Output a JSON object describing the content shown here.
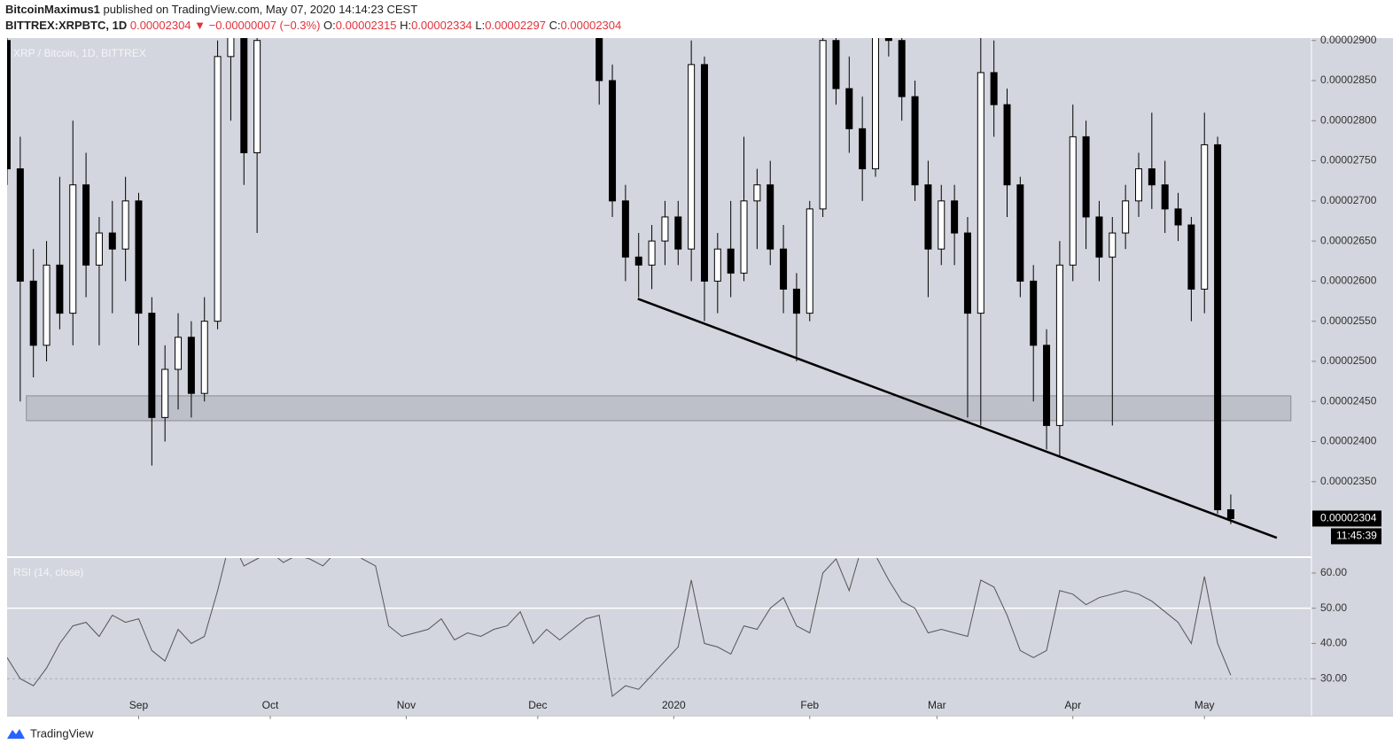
{
  "header": {
    "author": "BitcoinMaximus1",
    "published": "published on TradingView.com, May 07, 2020 14:14:23 CEST",
    "symbol": "BITTREX:XRPBTC, 1D",
    "last": "0.00002304",
    "change": "▼ −0.00000007 (−0.3%)",
    "ohlc": [
      {
        "key": "O:",
        "value": "0.00002315"
      },
      {
        "key": "H:",
        "value": "0.00002334"
      },
      {
        "key": "L:",
        "value": "0.00002297"
      },
      {
        "key": "C:",
        "value": "0.00002304"
      }
    ]
  },
  "footer": {
    "brand": "TradingView"
  },
  "chart_data": [
    {
      "type": "candlestick",
      "title": "XRP / Bitcoin, 1D, BITTREX",
      "up_color": "#ffffff",
      "down_color": "#000000",
      "x": [
        0,
        3,
        6,
        9,
        12,
        15,
        18,
        21,
        24,
        27,
        30,
        33,
        36,
        39,
        42,
        45,
        48,
        51,
        54,
        57,
        135,
        138,
        141,
        144,
        147,
        150,
        153,
        156,
        159,
        162,
        165,
        168,
        171,
        174,
        177,
        180,
        183,
        186,
        189,
        192,
        195,
        198,
        201,
        204,
        207,
        210,
        213,
        216,
        219,
        222,
        225,
        228,
        231,
        234,
        237,
        240,
        243,
        246,
        249,
        252,
        255,
        258,
        261,
        264,
        267,
        270,
        273,
        276,
        279
      ],
      "open": [
        2.9e-05,
        2.74e-05,
        2.6e-05,
        2.52e-05,
        2.62e-05,
        2.56e-05,
        2.72e-05,
        2.62e-05,
        2.66e-05,
        2.64e-05,
        2.7e-05,
        2.56e-05,
        2.43e-05,
        2.49e-05,
        2.53e-05,
        2.46e-05,
        2.55e-05,
        2.88e-05,
        2.95e-05,
        2.76e-05,
        2.95e-05,
        2.85e-05,
        2.7e-05,
        2.63e-05,
        2.62e-05,
        2.65e-05,
        2.68e-05,
        2.64e-05,
        2.87e-05,
        2.6e-05,
        2.64e-05,
        2.61e-05,
        2.7e-05,
        2.72e-05,
        2.64e-05,
        2.59e-05,
        2.56e-05,
        2.69e-05,
        2.9e-05,
        2.84e-05,
        2.79e-05,
        2.74e-05,
        2.93e-05,
        2.9e-05,
        2.83e-05,
        2.72e-05,
        2.64e-05,
        2.7e-05,
        2.66e-05,
        2.56e-05,
        2.86e-05,
        2.82e-05,
        2.72e-05,
        2.6e-05,
        2.52e-05,
        2.42e-05,
        2.62e-05,
        2.78e-05,
        2.68e-05,
        2.63e-05,
        2.66e-05,
        2.7e-05,
        2.74e-05,
        2.72e-05,
        2.69e-05,
        2.67e-05,
        2.59e-05,
        2.77e-05,
        2.315e-05
      ],
      "high": [
        2.95e-05,
        2.78e-05,
        2.64e-05,
        2.65e-05,
        2.73e-05,
        2.8e-05,
        2.76e-05,
        2.68e-05,
        2.7e-05,
        2.73e-05,
        2.71e-05,
        2.58e-05,
        2.52e-05,
        2.56e-05,
        2.55e-05,
        2.58e-05,
        2.9e-05,
        3e-05,
        3e-05,
        2.95e-05,
        3e-05,
        2.87e-05,
        2.72e-05,
        2.66e-05,
        2.67e-05,
        2.7e-05,
        2.7e-05,
        2.9e-05,
        2.88e-05,
        2.66e-05,
        2.7e-05,
        2.78e-05,
        2.74e-05,
        2.75e-05,
        2.67e-05,
        2.61e-05,
        2.7e-05,
        2.92e-05,
        2.95e-05,
        2.88e-05,
        2.83e-05,
        2.96e-05,
        2.99e-05,
        2.92e-05,
        2.85e-05,
        2.75e-05,
        2.72e-05,
        2.72e-05,
        2.68e-05,
        2.92e-05,
        2.9e-05,
        2.84e-05,
        2.73e-05,
        2.62e-05,
        2.54e-05,
        2.65e-05,
        2.82e-05,
        2.8e-05,
        2.7e-05,
        2.68e-05,
        2.72e-05,
        2.76e-05,
        2.81e-05,
        2.75e-05,
        2.71e-05,
        2.68e-05,
        2.81e-05,
        2.78e-05,
        2.334e-05
      ],
      "low": [
        2.72e-05,
        2.45e-05,
        2.48e-05,
        2.5e-05,
        2.54e-05,
        2.52e-05,
        2.58e-05,
        2.52e-05,
        2.56e-05,
        2.6e-05,
        2.52e-05,
        2.37e-05,
        2.4e-05,
        2.44e-05,
        2.43e-05,
        2.45e-05,
        2.54e-05,
        2.8e-05,
        2.72e-05,
        2.66e-05,
        2.82e-05,
        2.68e-05,
        2.6e-05,
        2.58e-05,
        2.59e-05,
        2.62e-05,
        2.62e-05,
        2.6e-05,
        2.55e-05,
        2.56e-05,
        2.58e-05,
        2.6e-05,
        2.64e-05,
        2.62e-05,
        2.56e-05,
        2.5e-05,
        2.55e-05,
        2.68e-05,
        2.82e-05,
        2.76e-05,
        2.7e-05,
        2.73e-05,
        2.88e-05,
        2.8e-05,
        2.7e-05,
        2.58e-05,
        2.62e-05,
        2.62e-05,
        2.43e-05,
        2.42e-05,
        2.78e-05,
        2.68e-05,
        2.58e-05,
        2.45e-05,
        2.39e-05,
        2.38e-05,
        2.6e-05,
        2.64e-05,
        2.6e-05,
        2.42e-05,
        2.64e-05,
        2.68e-05,
        2.69e-05,
        2.66e-05,
        2.65e-05,
        2.55e-05,
        2.56e-05,
        2.31e-05,
        2.297e-05
      ],
      "close": [
        2.74e-05,
        2.6e-05,
        2.52e-05,
        2.62e-05,
        2.56e-05,
        2.72e-05,
        2.62e-05,
        2.66e-05,
        2.64e-05,
        2.7e-05,
        2.56e-05,
        2.43e-05,
        2.49e-05,
        2.53e-05,
        2.46e-05,
        2.55e-05,
        2.88e-05,
        2.95e-05,
        2.76e-05,
        2.9e-05,
        2.85e-05,
        2.7e-05,
        2.63e-05,
        2.62e-05,
        2.65e-05,
        2.68e-05,
        2.64e-05,
        2.87e-05,
        2.6e-05,
        2.64e-05,
        2.61e-05,
        2.7e-05,
        2.72e-05,
        2.64e-05,
        2.59e-05,
        2.56e-05,
        2.69e-05,
        2.9e-05,
        2.84e-05,
        2.79e-05,
        2.74e-05,
        2.93e-05,
        2.9e-05,
        2.83e-05,
        2.72e-05,
        2.64e-05,
        2.7e-05,
        2.66e-05,
        2.56e-05,
        2.86e-05,
        2.82e-05,
        2.72e-05,
        2.6e-05,
        2.52e-05,
        2.42e-05,
        2.62e-05,
        2.78e-05,
        2.68e-05,
        2.63e-05,
        2.66e-05,
        2.7e-05,
        2.74e-05,
        2.72e-05,
        2.69e-05,
        2.67e-05,
        2.59e-05,
        2.77e-05,
        2.315e-05,
        2.304e-05
      ],
      "xlim": [
        0,
        297.4
      ],
      "ylim": [
        2.257e-05,
        2.903e-05
      ],
      "yticks": [
        {
          "value": 2.35e-05,
          "label": "0.00002350"
        },
        {
          "value": 2.4e-05,
          "label": "0.00002400"
        },
        {
          "value": 2.45e-05,
          "label": "0.00002450"
        },
        {
          "value": 2.5e-05,
          "label": "0.00002500"
        },
        {
          "value": 2.55e-05,
          "label": "0.00002550"
        },
        {
          "value": 2.6e-05,
          "label": "0.00002600"
        },
        {
          "value": 2.65e-05,
          "label": "0.00002650"
        },
        {
          "value": 2.7e-05,
          "label": "0.00002700"
        },
        {
          "value": 2.75e-05,
          "label": "0.00002750"
        },
        {
          "value": 2.8e-05,
          "label": "0.00002800"
        },
        {
          "value": 2.85e-05,
          "label": "0.00002850"
        },
        {
          "value": 2.9e-05,
          "label": "0.00002900"
        }
      ],
      "zone": {
        "x": [
          4.4,
          292.7
        ],
        "y": [
          2.426e-05,
          2.457e-05
        ],
        "color": "#b9bcc4"
      },
      "trendline": {
        "x": [
          143.8,
          289.5
        ],
        "y": [
          2.578e-05,
          2.28e-05
        ],
        "color": "#000000"
      },
      "price_label": "0.00002304",
      "countdown": "11:45:39"
    },
    {
      "type": "line",
      "title": "RSI (14, close)",
      "color": "#555555",
      "x": [
        0,
        3,
        6,
        9,
        12,
        15,
        18,
        21,
        24,
        27,
        30,
        33,
        36,
        39,
        42,
        45,
        48,
        51,
        54,
        57,
        60,
        63,
        66,
        69,
        72,
        75,
        78,
        81,
        84,
        87,
        90,
        93,
        96,
        99,
        102,
        105,
        108,
        111,
        114,
        117,
        120,
        123,
        126,
        129,
        132,
        135,
        138,
        141,
        144,
        147,
        150,
        153,
        156,
        159,
        162,
        165,
        168,
        171,
        174,
        177,
        180,
        183,
        186,
        189,
        192,
        195,
        198,
        201,
        204,
        207,
        210,
        213,
        216,
        219,
        222,
        225,
        228,
        231,
        234,
        237,
        240,
        243,
        246,
        249,
        252,
        255,
        258,
        261,
        264,
        267,
        270,
        273,
        276,
        279
      ],
      "values": [
        36,
        30,
        28,
        33,
        40,
        45,
        46,
        42,
        48,
        46,
        47,
        38,
        35,
        44,
        40,
        42,
        55,
        70,
        62,
        64,
        66,
        63,
        65,
        64,
        62,
        66,
        67,
        64,
        62,
        45,
        42,
        43,
        44,
        47,
        41,
        43,
        42,
        44,
        45,
        49,
        40,
        44,
        41,
        44,
        47,
        48,
        25,
        28,
        27,
        31,
        35,
        39,
        58,
        40,
        39,
        37,
        45,
        44,
        50,
        53,
        45,
        43,
        60,
        64,
        55,
        68,
        65,
        58,
        52,
        50,
        43,
        44,
        43,
        42,
        58,
        56,
        48,
        38,
        36,
        38,
        55,
        54,
        51,
        53,
        54,
        55,
        54,
        52,
        49,
        46,
        40,
        59,
        40,
        31
      ],
      "xlim": [
        0,
        297.4
      ],
      "ylim": [
        19.5,
        64.25
      ],
      "yticks": [
        {
          "value": 30,
          "label": "30.00"
        },
        {
          "value": 40,
          "label": "40.00"
        },
        {
          "value": 50,
          "label": "50.00"
        },
        {
          "value": 60,
          "label": "60.00"
        }
      ],
      "reference_lines": [
        50,
        30
      ],
      "xticks": [
        {
          "value": 30,
          "label": "Sep"
        },
        {
          "value": 60,
          "label": "Oct"
        },
        {
          "value": 91,
          "label": "Nov"
        },
        {
          "value": 121,
          "label": "Dec"
        },
        {
          "value": 152,
          "label": "2020"
        },
        {
          "value": 183,
          "label": "Feb"
        },
        {
          "value": 212,
          "label": "Mar"
        },
        {
          "value": 243,
          "label": "Apr"
        },
        {
          "value": 273,
          "label": "May"
        }
      ]
    }
  ]
}
